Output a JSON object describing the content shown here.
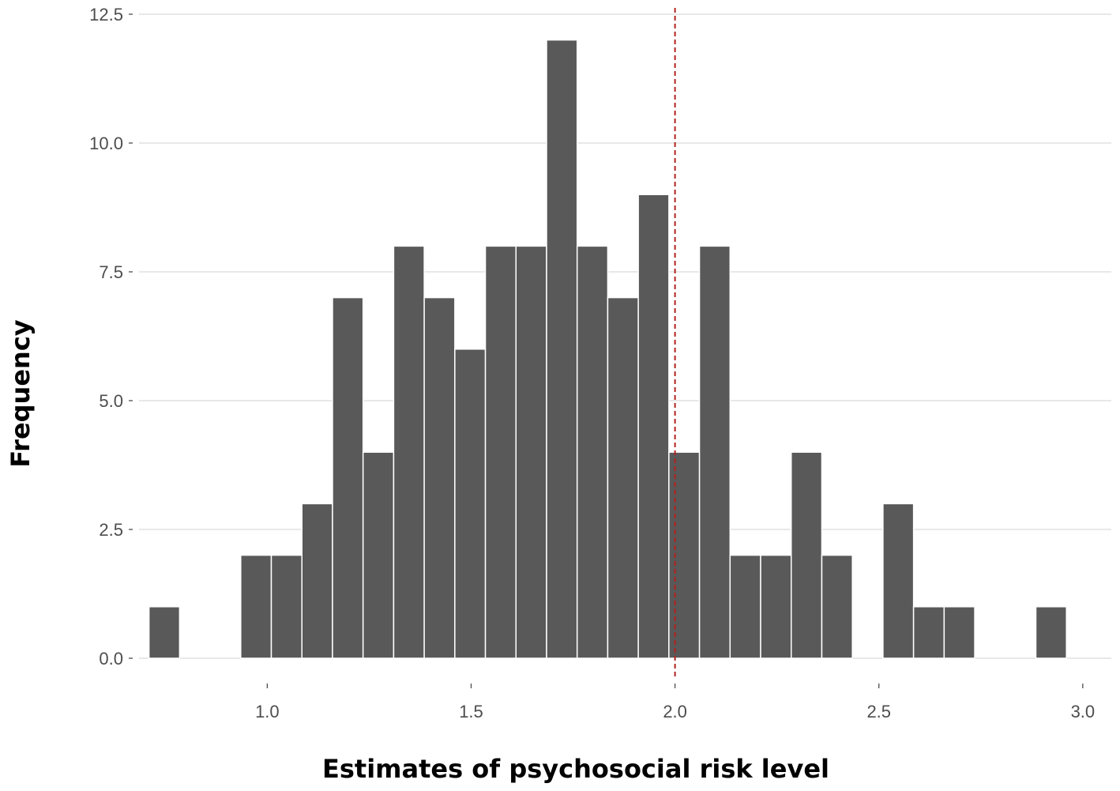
{
  "chart_data": {
    "type": "bar",
    "title": "",
    "xlabel": "Estimates of psychosocial risk level",
    "ylabel": "Frequency",
    "xlim": [
      0.67,
      3.07
    ],
    "ylim": [
      0,
      12.5
    ],
    "xticks": [
      1.0,
      1.5,
      2.0,
      2.5,
      3.0
    ],
    "xtick_labels": [
      "1.0",
      "1.5",
      "2.0",
      "2.5",
      "3.0"
    ],
    "yticks": [
      0,
      2.5,
      5,
      7.5,
      10,
      12.5
    ],
    "ytick_labels": [
      "0.0",
      "2.5",
      "5.0",
      "7.5",
      "10.0",
      "12.5"
    ],
    "grid": "horizontal",
    "bin_width": 0.075,
    "bins": [
      {
        "x0": 0.71,
        "x1": 0.785,
        "count": 1
      },
      {
        "x0": 0.785,
        "x1": 0.86,
        "count": 0
      },
      {
        "x0": 0.86,
        "x1": 0.935,
        "count": 0
      },
      {
        "x0": 0.935,
        "x1": 1.01,
        "count": 2
      },
      {
        "x0": 1.01,
        "x1": 1.085,
        "count": 2
      },
      {
        "x0": 1.085,
        "x1": 1.16,
        "count": 3
      },
      {
        "x0": 1.16,
        "x1": 1.235,
        "count": 7
      },
      {
        "x0": 1.235,
        "x1": 1.31,
        "count": 4
      },
      {
        "x0": 1.31,
        "x1": 1.385,
        "count": 8
      },
      {
        "x0": 1.385,
        "x1": 1.46,
        "count": 7
      },
      {
        "x0": 1.46,
        "x1": 1.535,
        "count": 6
      },
      {
        "x0": 1.535,
        "x1": 1.61,
        "count": 8
      },
      {
        "x0": 1.61,
        "x1": 1.685,
        "count": 8
      },
      {
        "x0": 1.685,
        "x1": 1.76,
        "count": 12
      },
      {
        "x0": 1.76,
        "x1": 1.835,
        "count": 8
      },
      {
        "x0": 1.835,
        "x1": 1.91,
        "count": 7
      },
      {
        "x0": 1.91,
        "x1": 1.985,
        "count": 9
      },
      {
        "x0": 1.985,
        "x1": 2.06,
        "count": 4
      },
      {
        "x0": 2.06,
        "x1": 2.135,
        "count": 8
      },
      {
        "x0": 2.135,
        "x1": 2.21,
        "count": 2
      },
      {
        "x0": 2.21,
        "x1": 2.285,
        "count": 2
      },
      {
        "x0": 2.285,
        "x1": 2.36,
        "count": 4
      },
      {
        "x0": 2.36,
        "x1": 2.435,
        "count": 2
      },
      {
        "x0": 2.435,
        "x1": 2.51,
        "count": 0
      },
      {
        "x0": 2.51,
        "x1": 2.585,
        "count": 3
      },
      {
        "x0": 2.585,
        "x1": 2.66,
        "count": 1
      },
      {
        "x0": 2.66,
        "x1": 2.735,
        "count": 1
      },
      {
        "x0": 2.735,
        "x1": 2.81,
        "count": 0
      },
      {
        "x0": 2.81,
        "x1": 2.885,
        "count": 0
      },
      {
        "x0": 2.885,
        "x1": 2.96,
        "count": 1
      }
    ],
    "reference_line": {
      "x": 2.0,
      "style": "dashed",
      "color": "#b22222"
    },
    "colors": {
      "bar_fill": "#595959",
      "bar_outline": "#ffffff",
      "grid": "#d9d9d9",
      "tick_text": "#4d4d4d"
    }
  }
}
